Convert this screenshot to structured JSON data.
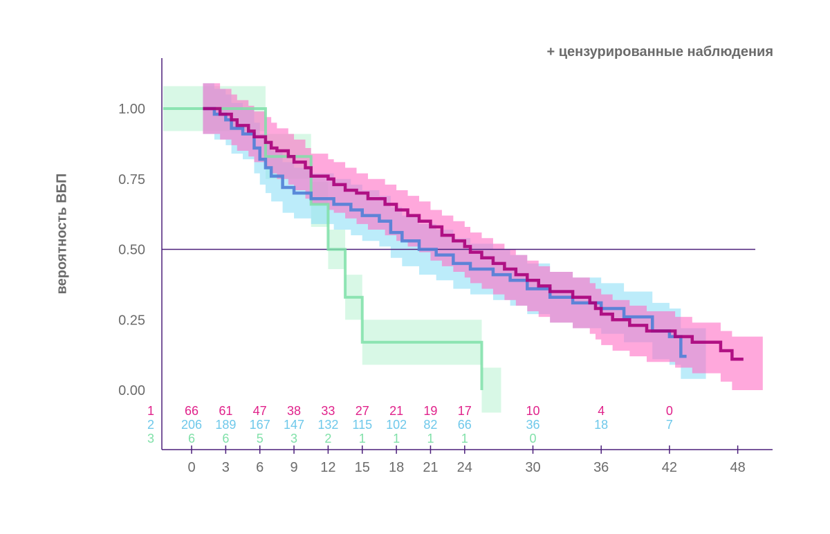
{
  "chart_data": {
    "type": "line",
    "subtype": "kaplan-meier",
    "title": "",
    "annotation": "+ цензурированные наблюдения",
    "xlabel": "",
    "ylabel": "вероятность ВБП",
    "xlim": [
      -3.5,
      52.5
    ],
    "ylim": [
      -0.21,
      1.18
    ],
    "x_ticks": [
      0,
      3,
      6,
      9,
      12,
      15,
      18,
      21,
      24,
      30,
      36,
      42,
      48
    ],
    "y_ticks": [
      0.0,
      0.25,
      0.5,
      0.75,
      1.0
    ],
    "y_tick_labels": [
      "0.00",
      "0.25",
      "0.50",
      "0.75",
      "1.00"
    ],
    "reference_line_y": 0.5,
    "colors": {
      "1": "#e0218a",
      "2": "#6ec8ea",
      "3": "#7fe0a8",
      "axis": "#4b1f7a",
      "text": "#6b6b6b"
    },
    "series": [
      {
        "name": "1",
        "color": "#e0218a",
        "line_color": "#a8007a",
        "fill": "#ff6ec4",
        "steps": [
          [
            1,
            1.0
          ],
          [
            2.5,
            0.98
          ],
          [
            3.5,
            0.96
          ],
          [
            4,
            0.94
          ],
          [
            5,
            0.92
          ],
          [
            5.5,
            0.9
          ],
          [
            6.5,
            0.88
          ],
          [
            7,
            0.86
          ],
          [
            7.5,
            0.85
          ],
          [
            8.5,
            0.83
          ],
          [
            9,
            0.81
          ],
          [
            10,
            0.79
          ],
          [
            10.5,
            0.76
          ],
          [
            12,
            0.75
          ],
          [
            12.5,
            0.73
          ],
          [
            13.5,
            0.71
          ],
          [
            14.5,
            0.7
          ],
          [
            15.5,
            0.68
          ],
          [
            17,
            0.66
          ],
          [
            18,
            0.64
          ],
          [
            19,
            0.62
          ],
          [
            20,
            0.6
          ],
          [
            21,
            0.58
          ],
          [
            22,
            0.55
          ],
          [
            23,
            0.53
          ],
          [
            24,
            0.51
          ],
          [
            24.5,
            0.49
          ],
          [
            25.5,
            0.47
          ],
          [
            26.5,
            0.45
          ],
          [
            27.5,
            0.43
          ],
          [
            28.5,
            0.41
          ],
          [
            29.5,
            0.39
          ],
          [
            30.5,
            0.37
          ],
          [
            31.5,
            0.35
          ],
          [
            33.5,
            0.33
          ],
          [
            35,
            0.31
          ],
          [
            35.5,
            0.29
          ],
          [
            36,
            0.27
          ],
          [
            37,
            0.25
          ],
          [
            38.5,
            0.23
          ],
          [
            40,
            0.21
          ],
          [
            42.5,
            0.19
          ],
          [
            44,
            0.17
          ],
          [
            46.5,
            0.14
          ],
          [
            47.5,
            0.11
          ],
          [
            48.5,
            0.11
          ]
        ],
        "ci_lower": [
          0.91,
          0.89,
          0.87,
          0.85,
          0.83,
          0.81,
          0.79,
          0.77,
          0.75,
          0.73,
          0.71,
          0.68,
          0.66,
          0.64,
          0.63,
          0.61,
          0.59,
          0.57,
          0.55,
          0.53,
          0.51,
          0.49,
          0.46,
          0.44,
          0.42,
          0.4,
          0.38,
          0.36,
          0.34,
          0.32,
          0.3,
          0.28,
          0.26,
          0.24,
          0.22,
          0.2,
          0.18,
          0.16,
          0.14,
          0.12,
          0.1,
          0.08,
          0.06,
          0.03,
          0.0,
          0.0
        ],
        "ci_upper": [
          1.09,
          1.07,
          1.05,
          1.03,
          1.01,
          0.99,
          0.97,
          0.95,
          0.93,
          0.91,
          0.89,
          0.86,
          0.84,
          0.82,
          0.81,
          0.79,
          0.77,
          0.75,
          0.73,
          0.71,
          0.69,
          0.67,
          0.64,
          0.62,
          0.6,
          0.58,
          0.56,
          0.54,
          0.52,
          0.5,
          0.48,
          0.46,
          0.44,
          0.42,
          0.4,
          0.38,
          0.36,
          0.34,
          0.32,
          0.3,
          0.28,
          0.26,
          0.24,
          0.21,
          0.19,
          0.19
        ]
      },
      {
        "name": "2",
        "color": "#5bc9e8",
        "line_color": "#4f7fd6",
        "fill": "#8fe0f7",
        "steps": [
          [
            1,
            1.0
          ],
          [
            2,
            0.98
          ],
          [
            3,
            0.96
          ],
          [
            3.5,
            0.93
          ],
          [
            4.5,
            0.91
          ],
          [
            5.5,
            0.86
          ],
          [
            6,
            0.82
          ],
          [
            6.5,
            0.79
          ],
          [
            7,
            0.76
          ],
          [
            8,
            0.72
          ],
          [
            9,
            0.7
          ],
          [
            10.5,
            0.68
          ],
          [
            12.5,
            0.66
          ],
          [
            14,
            0.64
          ],
          [
            15,
            0.62
          ],
          [
            16.5,
            0.6
          ],
          [
            17.5,
            0.56
          ],
          [
            18.5,
            0.53
          ],
          [
            20,
            0.5
          ],
          [
            21.5,
            0.48
          ],
          [
            23,
            0.45
          ],
          [
            24.5,
            0.43
          ],
          [
            26.5,
            0.41
          ],
          [
            28,
            0.39
          ],
          [
            29.5,
            0.36
          ],
          [
            31.5,
            0.33
          ],
          [
            33.5,
            0.31
          ],
          [
            36,
            0.29
          ],
          [
            38,
            0.26
          ],
          [
            40.5,
            0.21
          ],
          [
            42,
            0.19
          ],
          [
            43,
            0.12
          ],
          [
            43.5,
            0.12
          ]
        ],
        "ci_lower": [
          0.91,
          0.89,
          0.87,
          0.84,
          0.82,
          0.77,
          0.73,
          0.7,
          0.67,
          0.63,
          0.61,
          0.59,
          0.57,
          0.55,
          0.53,
          0.51,
          0.47,
          0.44,
          0.41,
          0.39,
          0.36,
          0.34,
          0.32,
          0.3,
          0.27,
          0.24,
          0.22,
          0.2,
          0.17,
          0.11,
          0.09,
          0.04,
          0.04
        ],
        "ci_upper": [
          1.09,
          1.07,
          1.05,
          1.02,
          1.0,
          0.95,
          0.91,
          0.88,
          0.85,
          0.81,
          0.79,
          0.77,
          0.75,
          0.73,
          0.71,
          0.69,
          0.65,
          0.62,
          0.59,
          0.57,
          0.54,
          0.52,
          0.5,
          0.48,
          0.45,
          0.42,
          0.4,
          0.38,
          0.35,
          0.31,
          0.29,
          0.22,
          0.22
        ]
      },
      {
        "name": "3",
        "color": "#7fe0a8",
        "line_color": "#7fe0a8",
        "fill": "#a8f0c8",
        "steps": [
          [
            -2.5,
            1.0
          ],
          [
            3,
            1.0
          ],
          [
            6.5,
            0.83
          ],
          [
            10.5,
            0.66
          ],
          [
            12,
            0.5
          ],
          [
            13.5,
            0.33
          ],
          [
            15,
            0.17
          ],
          [
            25.5,
            0.0
          ]
        ],
        "ci_lower": [
          0.92,
          0.92,
          0.75,
          0.58,
          0.43,
          0.25,
          0.09,
          -0.08
        ],
        "ci_upper": [
          1.08,
          1.08,
          0.91,
          0.74,
          0.57,
          0.41,
          0.25,
          0.08
        ]
      }
    ],
    "risk_table": {
      "times": [
        0,
        3,
        6,
        9,
        12,
        15,
        18,
        21,
        24,
        30,
        36,
        42
      ],
      "rows": [
        {
          "label": "1",
          "counts": [
            "66",
            "61",
            "47",
            "38",
            "33",
            "27",
            "21",
            "19",
            "17",
            "10",
            "4",
            "0"
          ]
        },
        {
          "label": "2",
          "counts": [
            "206",
            "189",
            "167",
            "147",
            "132",
            "115",
            "102",
            "82",
            "66",
            "36",
            "18",
            "7"
          ]
        },
        {
          "label": "3",
          "counts": [
            "6",
            "6",
            "5",
            "3",
            "2",
            "1",
            "1",
            "1",
            "1",
            "0",
            "",
            ""
          ]
        }
      ]
    }
  }
}
